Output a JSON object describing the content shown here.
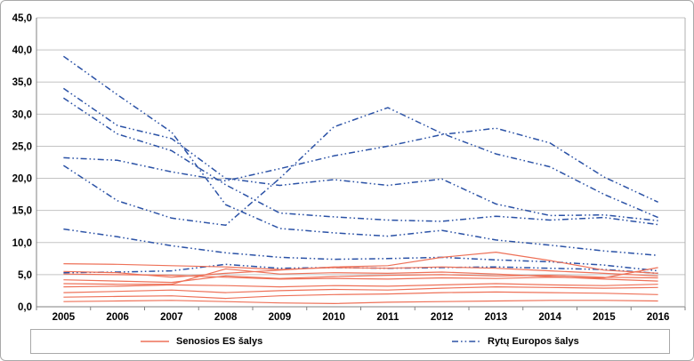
{
  "legend": {
    "west": {
      "label": "Senosios ES šalys"
    },
    "east": {
      "label": "Rytų Europos šalys"
    }
  },
  "colors": {
    "west": "#ee7158",
    "east": "#2b52a6",
    "grid": "#c3c3c3",
    "axis": "#808080",
    "plot_border": "#b0b0b0",
    "text": "#000000",
    "frame_border": "#a9a9a9"
  },
  "chart_data": {
    "type": "line",
    "x": [
      "2005",
      "2006",
      "2007",
      "2008",
      "2009",
      "2010",
      "2011",
      "2012",
      "2013",
      "2014",
      "2015",
      "2016"
    ],
    "ylim": [
      0,
      45
    ],
    "y_tick_step": 5,
    "y_tick_labels": [
      "45,0",
      "40,0",
      "35,0",
      "30,0",
      "25,0",
      "20,0",
      "15,0",
      "10,0",
      "5,0",
      "0,0"
    ],
    "grid": "horizontal",
    "legend_position": "bottom",
    "series": [
      {
        "name": "east-1",
        "group": "east",
        "values": [
          22.0,
          16.5,
          13.8,
          12.7,
          20.0,
          28.0,
          31.0,
          27.0,
          23.8,
          21.8,
          17.5,
          13.9
        ]
      },
      {
        "name": "east-2",
        "group": "east",
        "values": [
          23.2,
          22.8,
          21.0,
          19.6,
          21.5,
          23.5,
          25.0,
          26.8,
          27.8,
          25.5,
          20.2,
          16.3
        ]
      },
      {
        "name": "east-3",
        "group": "east",
        "values": [
          34.0,
          28.2,
          26.2,
          20.0,
          18.9,
          19.8,
          18.9,
          19.9,
          16.0,
          14.2,
          14.3,
          13.4
        ]
      },
      {
        "name": "east-4",
        "group": "east",
        "values": [
          32.5,
          26.9,
          24.3,
          19.0,
          14.6,
          14.0,
          13.5,
          13.3,
          14.1,
          13.5,
          13.9,
          12.8
        ]
      },
      {
        "name": "east-5",
        "group": "east",
        "values": [
          39.0,
          33.0,
          27.2,
          15.9,
          12.2,
          11.5,
          11.0,
          11.9,
          10.4,
          9.6,
          8.7,
          8.0
        ]
      },
      {
        "name": "east-6",
        "group": "east",
        "values": [
          12.1,
          10.9,
          9.5,
          8.4,
          7.7,
          7.4,
          7.5,
          7.7,
          7.3,
          7.0,
          6.5,
          5.6
        ]
      },
      {
        "name": "east-7",
        "group": "east",
        "values": [
          5.3,
          5.4,
          5.6,
          6.6,
          6.0,
          6.1,
          6.0,
          6.1,
          6.2,
          6.0,
          5.8,
          5.2
        ]
      },
      {
        "name": "west-1",
        "group": "west",
        "values": [
          6.7,
          6.6,
          6.4,
          6.2,
          5.8,
          6.1,
          6.0,
          6.2,
          6.0,
          5.6,
          5.2,
          4.8
        ]
      },
      {
        "name": "west-2",
        "group": "west",
        "values": [
          5.5,
          5.3,
          4.6,
          5.2,
          5.7,
          6.2,
          6.4,
          7.7,
          8.5,
          7.2,
          5.7,
          5.2
        ]
      },
      {
        "name": "west-3",
        "group": "west",
        "values": [
          5.1,
          5.0,
          4.9,
          4.6,
          4.3,
          4.4,
          4.3,
          4.5,
          4.4,
          4.6,
          4.5,
          6.1
        ]
      },
      {
        "name": "west-4",
        "group": "west",
        "values": [
          4.2,
          4.0,
          3.8,
          4.8,
          4.4,
          4.7,
          4.9,
          5.0,
          4.8,
          4.9,
          4.6,
          4.5
        ]
      },
      {
        "name": "west-5",
        "group": "west",
        "values": [
          3.6,
          3.5,
          3.5,
          5.9,
          5.1,
          5.3,
          5.2,
          5.4,
          5.1,
          4.7,
          4.3,
          4.0
        ]
      },
      {
        "name": "west-6",
        "group": "west",
        "values": [
          3.1,
          3.2,
          3.4,
          3.3,
          3.1,
          3.3,
          3.2,
          3.4,
          3.6,
          3.4,
          3.3,
          3.5
        ]
      },
      {
        "name": "west-7",
        "group": "west",
        "values": [
          2.2,
          2.4,
          2.6,
          2.2,
          2.5,
          2.7,
          2.6,
          2.9,
          3.1,
          3.0,
          2.9,
          3.0
        ]
      },
      {
        "name": "west-8",
        "group": "west",
        "values": [
          1.5,
          1.6,
          1.7,
          1.3,
          1.7,
          1.9,
          2.0,
          2.2,
          2.3,
          2.2,
          2.1,
          1.9
        ]
      },
      {
        "name": "west-9",
        "group": "west",
        "values": [
          0.8,
          0.9,
          1.0,
          0.8,
          0.6,
          0.5,
          0.7,
          0.8,
          0.9,
          1.0,
          1.0,
          0.9
        ]
      }
    ]
  }
}
